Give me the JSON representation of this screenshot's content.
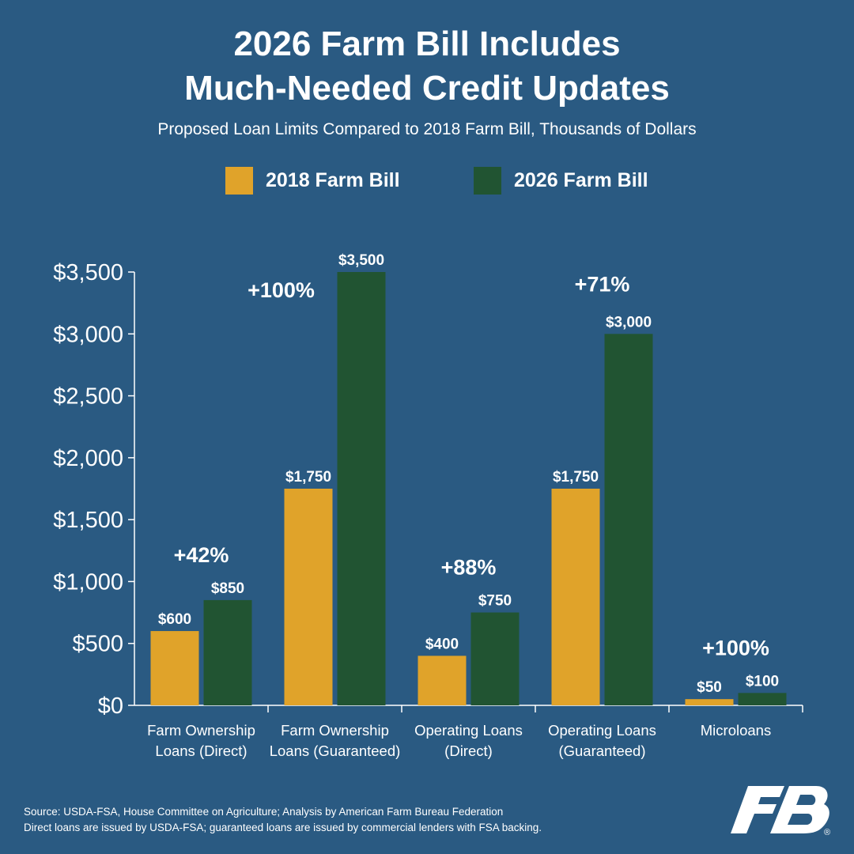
{
  "title_line1": "2026 Farm Bill Includes",
  "title_line2": "Much-Needed Credit Updates",
  "subtitle": "Proposed Loan Limits Compared to 2018 Farm Bill, Thousands of Dollars",
  "colors": {
    "background": "#2a5a82",
    "series_2018": "#e0a32a",
    "series_2026": "#215432",
    "text": "#ffffff"
  },
  "chart_data": {
    "type": "bar",
    "title": "2026 Farm Bill Includes Much-Needed Credit Updates",
    "subtitle": "Proposed Loan Limits Compared to 2018 Farm Bill, Thousands of Dollars",
    "categories": [
      [
        "Farm Ownership",
        "Loans (Direct)"
      ],
      [
        "Farm Ownership",
        "Loans (Guaranteed)"
      ],
      [
        "Operating Loans",
        "(Direct)"
      ],
      [
        "Operating Loans",
        "(Guaranteed)"
      ],
      [
        "Microloans"
      ]
    ],
    "series": [
      {
        "name": "2018 Farm Bill",
        "values": [
          600,
          1750,
          400,
          1750,
          50
        ],
        "labels": [
          "$600",
          "$1,750",
          "$400",
          "$1,750",
          "$50"
        ]
      },
      {
        "name": "2026 Farm Bill",
        "values": [
          850,
          3500,
          750,
          3000,
          100
        ],
        "labels": [
          "$850",
          "$3,500",
          "$750",
          "$3,000",
          "$100"
        ]
      }
    ],
    "changes": [
      "+42%",
      "+100%",
      "+88%",
      "+71%",
      "+100%"
    ],
    "yticks": [
      0,
      500,
      1000,
      1500,
      2000,
      2500,
      3000,
      3500
    ],
    "yticklabels": [
      "$0",
      "$500",
      "$1,000",
      "$1,500",
      "$2,000",
      "$2,500",
      "$3,000",
      "$3,500"
    ],
    "ylim": [
      0,
      3500
    ],
    "xlabel": "",
    "ylabel": "",
    "grid": false,
    "legend": "top-center"
  },
  "source_line1": "Source: USDA-FSA, House Committee on Agriculture; Analysis by American Farm Bureau Federation",
  "source_line2": "Direct loans are issued by USDA-FSA; guaranteed loans are issued by commercial lenders with FSA backing.",
  "logo": {
    "icon": "fb-logo",
    "registered": "®"
  }
}
